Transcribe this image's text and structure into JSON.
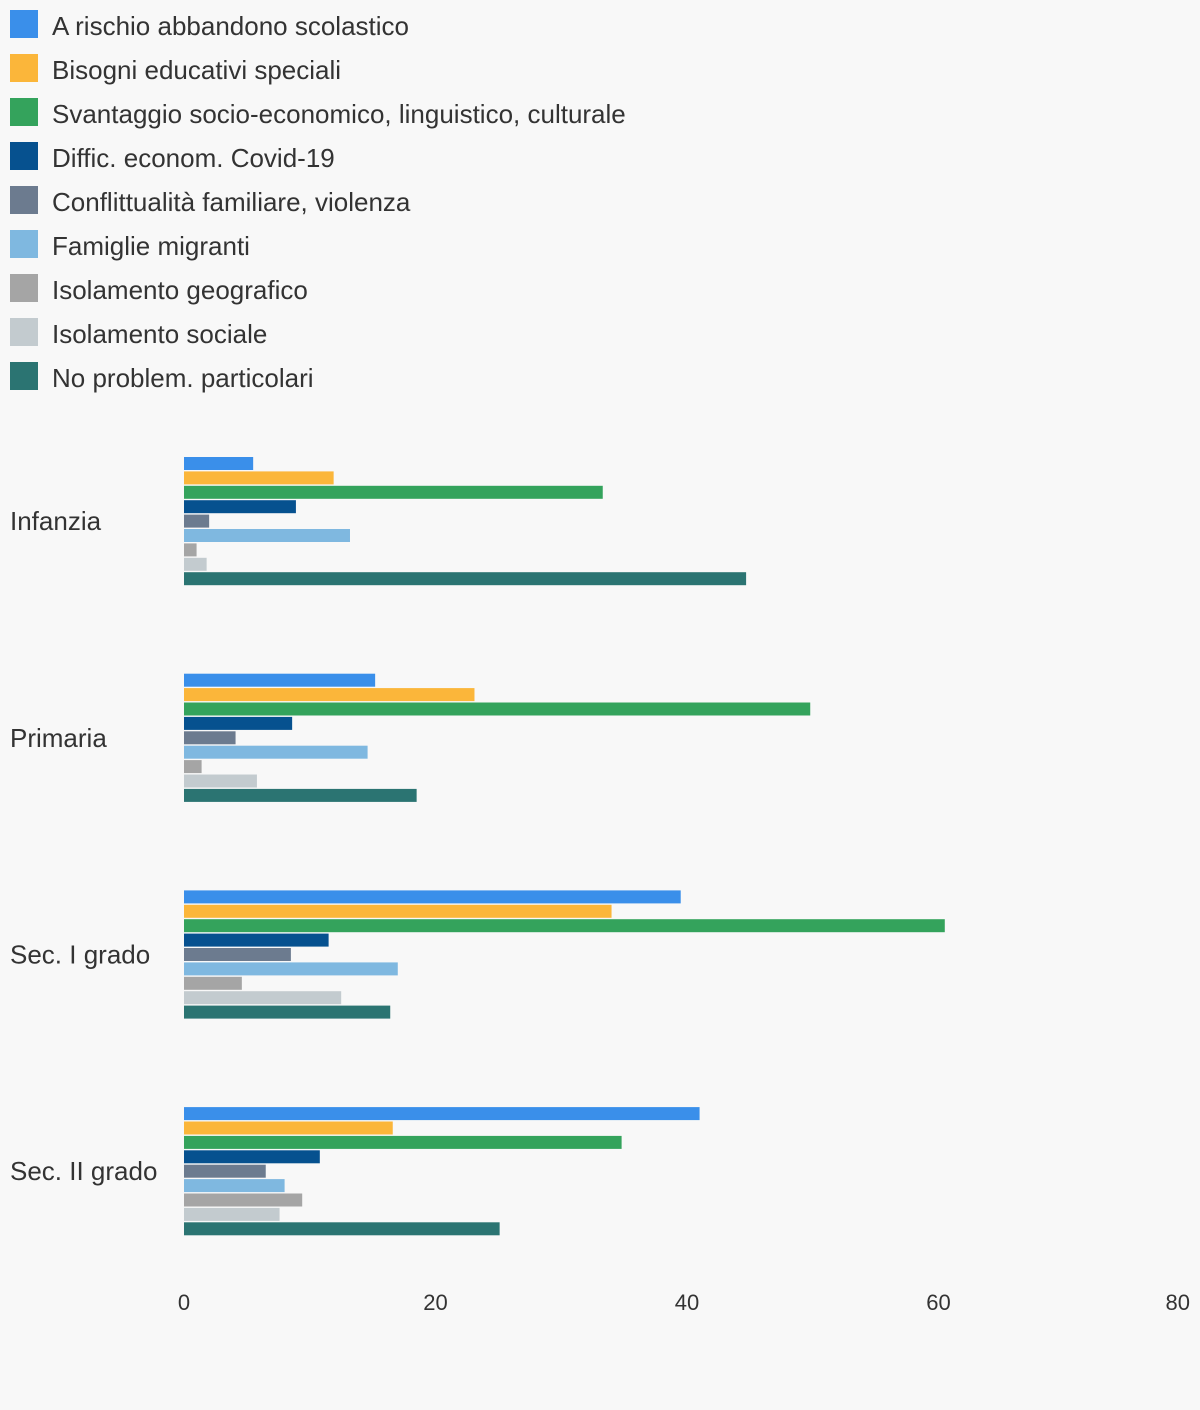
{
  "chart_data": {
    "type": "bar",
    "orientation": "horizontal",
    "categories": [
      "Infanzia",
      "Primaria",
      "Sec. I grado",
      "Sec. II grado"
    ],
    "series": [
      {
        "name": "A rischio abbandono scolastico",
        "color": "#3a8fea",
        "values": [
          5.5,
          15.2,
          39.5,
          41.0
        ]
      },
      {
        "name": "Bisogni educativi speciali",
        "color": "#fbb63a",
        "values": [
          11.9,
          23.1,
          34.0,
          16.6
        ]
      },
      {
        "name": "Svantaggio socio-economico, linguistico, culturale",
        "color": "#34a35c",
        "values": [
          33.3,
          49.8,
          60.5,
          34.8
        ]
      },
      {
        "name": "Diffic. econom. Covid-19",
        "color": "#06518f",
        "values": [
          8.9,
          8.6,
          11.5,
          10.8
        ]
      },
      {
        "name": "Conflittualità familiare, violenza",
        "color": "#6c7b8f",
        "values": [
          2.0,
          4.1,
          8.5,
          6.5
        ]
      },
      {
        "name": "Famiglie migranti",
        "color": "#7fb8e0",
        "values": [
          13.2,
          14.6,
          17.0,
          8.0
        ]
      },
      {
        "name": "Isolamento geografico",
        "color": "#a5a5a5",
        "values": [
          1.0,
          1.4,
          4.6,
          9.4
        ]
      },
      {
        "name": "Isolamento sociale",
        "color": "#c3cbcf",
        "values": [
          1.8,
          5.8,
          12.5,
          7.6
        ]
      },
      {
        "name": "No problem. particolari",
        "color": "#2b7472",
        "values": [
          44.7,
          18.5,
          16.4,
          25.1
        ]
      }
    ],
    "xlim": [
      0,
      80
    ],
    "xticks": [
      0,
      20,
      40,
      60,
      80
    ],
    "grid": false,
    "legend_position": "top-left"
  }
}
